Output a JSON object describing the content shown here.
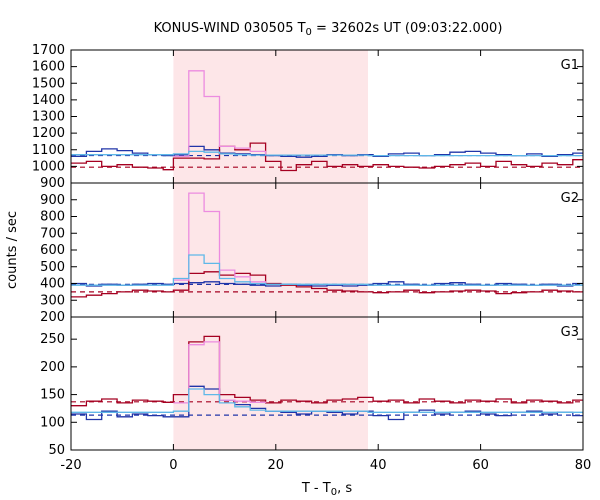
{
  "title": {
    "prefix": "KONUS-WIND 030505 T",
    "sub": "0",
    "suffix": " = 32602s UT (09:03:22.000)"
  },
  "chart_data": {
    "type": "line",
    "xlabel": {
      "main": "T - T",
      "sub": "0",
      "suffix": ", s"
    },
    "ylabel": "counts / sec",
    "xlim": [
      -20,
      80
    ],
    "x_ticks": [
      -20,
      0,
      20,
      40,
      60,
      80
    ],
    "shaded_interval": [
      0,
      38
    ],
    "colors": {
      "shade": "#fde6e8",
      "red": "#a50021",
      "blue": "#2135a8",
      "cyan": "#5fb8e8",
      "pink": "#ec8ce0"
    },
    "panels": [
      {
        "label": "G1",
        "ylim": [
          900,
          1700
        ],
        "y_ticks": [
          900,
          1000,
          1100,
          1200,
          1300,
          1400,
          1500,
          1600,
          1700
        ],
        "background_red": 995,
        "background_blue": 1065,
        "series": [
          {
            "name": "",
            "color_key": "blue",
            "x": [
              -20,
              -17,
              -14,
              -11,
              -8,
              -5,
              -2,
              0,
              3,
              6,
              9,
              12,
              15,
              18,
              21,
              24,
              27,
              30,
              33,
              36,
              39,
              42,
              45,
              48,
              51,
              54,
              57,
              60,
              63,
              66,
              69,
              72,
              75,
              78,
              80
            ],
            "y": [
              1060,
              1090,
              1105,
              1095,
              1080,
              1070,
              1065,
              1070,
              1120,
              1100,
              1080,
              1075,
              1070,
              1065,
              1060,
              1055,
              1060,
              1070,
              1065,
              1070,
              1060,
              1075,
              1080,
              1065,
              1070,
              1085,
              1090,
              1080,
              1070,
              1065,
              1075,
              1060,
              1070,
              1080,
              1080
            ]
          },
          {
            "name": "",
            "color_key": "red",
            "x": [
              -20,
              -17,
              -14,
              -11,
              -8,
              -5,
              -2,
              0,
              3,
              6,
              9,
              12,
              15,
              18,
              21,
              24,
              27,
              30,
              33,
              36,
              39,
              42,
              45,
              48,
              51,
              54,
              57,
              60,
              63,
              66,
              69,
              72,
              75,
              78,
              80
            ],
            "y": [
              1020,
              1030,
              1000,
              1010,
              995,
              990,
              980,
              1050,
              1050,
              1045,
              1120,
              1100,
              1140,
              1030,
              975,
              1010,
              1030,
              1000,
              1010,
              1000,
              1010,
              1000,
              995,
              990,
              1000,
              1010,
              1020,
              1000,
              1030,
              1010,
              1000,
              1020,
              1010,
              1040,
              1040
            ]
          },
          {
            "name": "",
            "color_key": "pink",
            "x": [
              0,
              3,
              6,
              9,
              12,
              15,
              18
            ],
            "y": [
              1060,
              1575,
              1420,
              1120,
              1110,
              1090,
              1070
            ]
          },
          {
            "name": "",
            "color_key": "cyan",
            "x": [
              -20,
              0,
              3,
              6,
              9,
              12,
              15,
              18,
              38,
              80
            ],
            "y": [
              1070,
              1075,
              1090,
              1085,
              1075,
              1070,
              1068,
              1068,
              1065,
              1065
            ]
          }
        ]
      },
      {
        "label": "G2",
        "ylim": [
          200,
          1000
        ],
        "y_ticks": [
          200,
          300,
          400,
          500,
          600,
          700,
          800,
          900
        ],
        "background_red": 350,
        "background_blue": 395,
        "series": [
          {
            "name": "",
            "color_key": "blue",
            "x": [
              -20,
              -17,
              -14,
              -11,
              -8,
              -5,
              -2,
              0,
              3,
              6,
              9,
              12,
              15,
              18,
              21,
              24,
              27,
              30,
              33,
              36,
              39,
              42,
              45,
              48,
              51,
              54,
              57,
              60,
              63,
              66,
              69,
              72,
              75,
              78,
              80
            ],
            "y": [
              400,
              385,
              395,
              390,
              395,
              400,
              395,
              400,
              405,
              410,
              400,
              395,
              390,
              385,
              395,
              390,
              385,
              390,
              385,
              390,
              400,
              410,
              395,
              390,
              400,
              405,
              395,
              390,
              400,
              395,
              390,
              395,
              385,
              400,
              400
            ]
          },
          {
            "name": "",
            "color_key": "red",
            "x": [
              -20,
              -17,
              -14,
              -11,
              -8,
              -5,
              -2,
              0,
              3,
              6,
              9,
              12,
              15,
              18,
              21,
              24,
              27,
              30,
              33,
              36,
              39,
              42,
              45,
              48,
              51,
              54,
              57,
              60,
              63,
              66,
              69,
              72,
              75,
              78,
              80
            ],
            "y": [
              320,
              330,
              340,
              350,
              360,
              355,
              350,
              360,
              460,
              470,
              450,
              460,
              450,
              400,
              390,
              380,
              370,
              360,
              355,
              350,
              345,
              350,
              360,
              345,
              350,
              355,
              360,
              355,
              340,
              345,
              350,
              360,
              355,
              350,
              350
            ]
          },
          {
            "name": "",
            "color_key": "pink",
            "x": [
              0,
              3,
              6,
              9,
              12,
              15,
              18
            ],
            "y": [
              420,
              940,
              830,
              480,
              440,
              410,
              400
            ]
          },
          {
            "name": "",
            "color_key": "cyan",
            "x": [
              -20,
              0,
              3,
              6,
              9,
              12,
              15,
              18,
              38,
              80
            ],
            "y": [
              390,
              430,
              570,
              520,
              430,
              410,
              400,
              395,
              390,
              385
            ]
          }
        ]
      },
      {
        "label": "G3",
        "ylim": [
          50,
          290
        ],
        "y_ticks": [
          50,
          100,
          150,
          200,
          250
        ],
        "background_red": 137,
        "background_blue": 113,
        "series": [
          {
            "name": "",
            "color_key": "blue",
            "x": [
              -20,
              -17,
              -14,
              -11,
              -8,
              -5,
              -2,
              0,
              3,
              6,
              9,
              12,
              15,
              18,
              21,
              24,
              27,
              30,
              33,
              36,
              39,
              42,
              45,
              48,
              51,
              54,
              57,
              60,
              63,
              66,
              69,
              72,
              75,
              78,
              80
            ],
            "y": [
              115,
              105,
              120,
              110,
              115,
              112,
              110,
              110,
              165,
              160,
              140,
              132,
              125,
              120,
              118,
              115,
              120,
              118,
              115,
              120,
              112,
              105,
              118,
              122,
              115,
              118,
              120,
              115,
              112,
              118,
              120,
              115,
              118,
              112,
              112
            ]
          },
          {
            "name": "",
            "color_key": "red",
            "x": [
              -20,
              -17,
              -14,
              -11,
              -8,
              -5,
              -2,
              0,
              3,
              6,
              9,
              12,
              15,
              18,
              21,
              24,
              27,
              30,
              33,
              36,
              39,
              42,
              45,
              48,
              51,
              54,
              57,
              60,
              63,
              66,
              69,
              72,
              75,
              78,
              80
            ],
            "y": [
              130,
              138,
              142,
              135,
              140,
              138,
              136,
              150,
              245,
              255,
              150,
              145,
              140,
              135,
              140,
              138,
              135,
              140,
              142,
              145,
              138,
              140,
              135,
              142,
              138,
              135,
              140,
              138,
              142,
              135,
              140,
              138,
              135,
              140,
              140
            ]
          },
          {
            "name": "",
            "color_key": "pink",
            "x": [
              0,
              3,
              6,
              9,
              12,
              15,
              18
            ],
            "y": [
              135,
              240,
              245,
              140,
              138,
              136,
              135
            ]
          },
          {
            "name": "",
            "color_key": "cyan",
            "x": [
              -20,
              0,
              3,
              6,
              9,
              12,
              15,
              18,
              38,
              80
            ],
            "y": [
              118,
              120,
              160,
              150,
              135,
              128,
              122,
              120,
              118,
              116
            ]
          }
        ]
      }
    ]
  }
}
